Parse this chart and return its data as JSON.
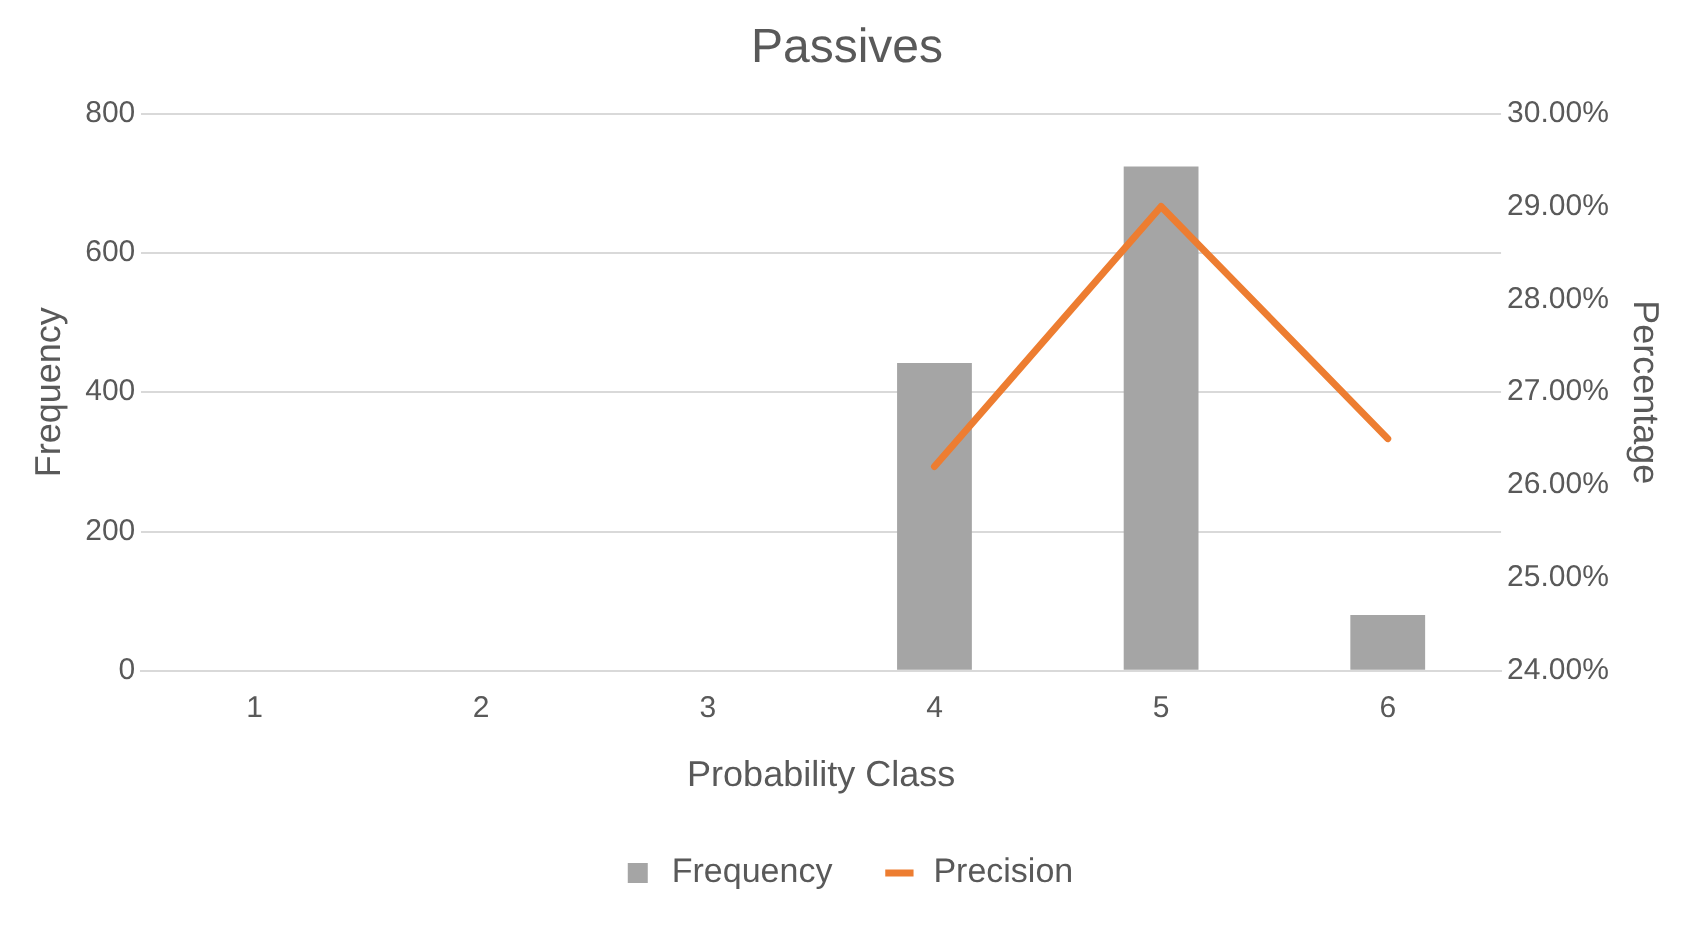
{
  "chart_data": {
    "type": "bar",
    "title": "Passives",
    "xlabel": "Probability Class",
    "ylabel": "Frequency",
    "y2label": "Percentage",
    "categories": [
      "1",
      "2",
      "3",
      "4",
      "5",
      "6"
    ],
    "series": [
      {
        "name": "Frequency",
        "color": "#a5a5a5",
        "values": [
          0,
          0,
          0,
          442,
          724,
          80
        ]
      },
      {
        "name": "Precision",
        "type": "line",
        "axis": "y2",
        "color": "#ed7d31",
        "values": [
          null,
          null,
          null,
          26.2,
          29.0,
          26.5
        ]
      }
    ],
    "ylim": [
      0,
      800
    ],
    "yticks": [
      0,
      200,
      400,
      600,
      800
    ],
    "y2lim": [
      24,
      30
    ],
    "y2ticks": [
      {
        "value": 24,
        "label": "24.00%"
      },
      {
        "value": 25,
        "label": "25.00%"
      },
      {
        "value": 26,
        "label": "26.00%"
      },
      {
        "value": 27,
        "label": "27.00%"
      },
      {
        "value": 28,
        "label": "28.00%"
      },
      {
        "value": 29,
        "label": "29.00%"
      },
      {
        "value": 30,
        "label": "30.00%"
      }
    ],
    "grid": "y",
    "legend": "bottom",
    "marker": "none",
    "line_style": "solid"
  }
}
